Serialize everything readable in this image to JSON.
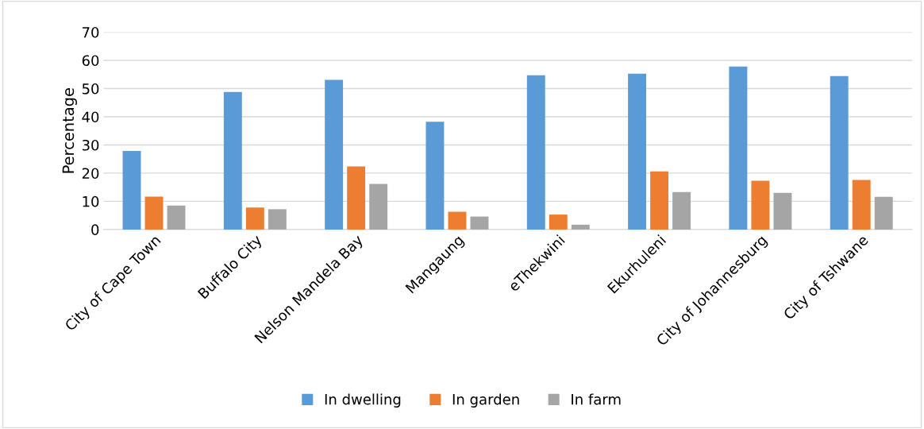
{
  "chart_data": {
    "type": "bar",
    "ylabel": "Percentage",
    "categories": [
      "City of Cape Town",
      "Buffalo City",
      "Nelson Mandela Bay",
      "Mangaung",
      "eThekwini",
      "Ekurhuleni",
      "City of Johannesburg",
      "City of Tshwane"
    ],
    "series": [
      {
        "name": "In dwelling",
        "color": "#5b9bd5",
        "values": [
          27.9,
          48.8,
          53.1,
          38.2,
          54.7,
          55.3,
          57.8,
          54.4
        ]
      },
      {
        "name": "In garden",
        "color": "#ed7d31",
        "values": [
          11.7,
          7.8,
          22.4,
          6.3,
          5.3,
          20.6,
          17.3,
          17.6
        ]
      },
      {
        "name": "In farm",
        "color": "#a5a5a5",
        "values": [
          8.5,
          7.2,
          16.2,
          4.6,
          1.7,
          13.3,
          13.0,
          11.6
        ]
      }
    ],
    "ylim": [
      0,
      70
    ],
    "yticks": [
      0,
      10,
      20,
      30,
      40,
      50,
      60,
      70
    ],
    "grid": "y",
    "legend": "bottom"
  }
}
